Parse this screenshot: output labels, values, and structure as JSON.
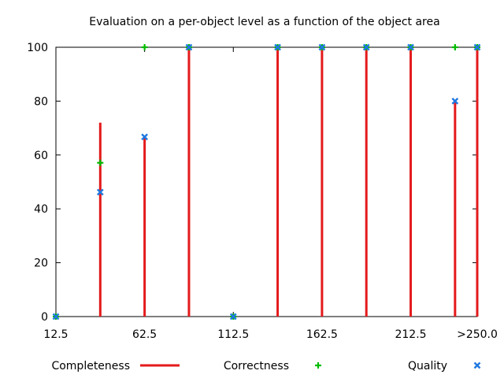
{
  "chart_data": {
    "type": "impulse",
    "title": "Evaluation on a per-object level as a function of the object area",
    "xlabel": "",
    "ylabel": "",
    "ylim": [
      0,
      100
    ],
    "xlim": [
      12.5,
      250
    ],
    "y_ticks": [
      "0",
      "20",
      "40",
      "60",
      "80",
      "100"
    ],
    "x_ticks": [
      {
        "x": 12.5,
        "label": "12.5"
      },
      {
        "x": 62.5,
        "label": "62.5"
      },
      {
        "x": 112.5,
        "label": "112.5"
      },
      {
        "x": 162.5,
        "label": "162.5"
      },
      {
        "x": 212.5,
        "label": "212.5"
      },
      {
        "x": 250,
        "label": ">250.0"
      }
    ],
    "legend_position": "bottom",
    "grid": false,
    "series": [
      {
        "name": "Completeness",
        "style": "impulse",
        "color": "#e41a1c",
        "points": [
          {
            "x": 12.5,
            "y": 0
          },
          {
            "x": 37.5,
            "y": 72
          },
          {
            "x": 62.5,
            "y": 67
          },
          {
            "x": 87.5,
            "y": 100
          },
          {
            "x": 112.5,
            "y": 0
          },
          {
            "x": 137.5,
            "y": 100
          },
          {
            "x": 162.5,
            "y": 100
          },
          {
            "x": 187.5,
            "y": 100
          },
          {
            "x": 212.5,
            "y": 100
          },
          {
            "x": 237.5,
            "y": 80
          },
          {
            "x": 250,
            "y": 100
          }
        ]
      },
      {
        "name": "Correctness",
        "style": "plus",
        "color": "#00bb00",
        "points": [
          {
            "x": 12.5,
            "y": 0
          },
          {
            "x": 37.5,
            "y": 57.1
          },
          {
            "x": 62.5,
            "y": 100
          },
          {
            "x": 87.5,
            "y": 100
          },
          {
            "x": 112.5,
            "y": 0
          },
          {
            "x": 137.5,
            "y": 100
          },
          {
            "x": 162.5,
            "y": 100
          },
          {
            "x": 187.5,
            "y": 100
          },
          {
            "x": 212.5,
            "y": 100
          },
          {
            "x": 237.5,
            "y": 100
          },
          {
            "x": 250,
            "y": 100
          }
        ]
      },
      {
        "name": "Quality",
        "style": "cross",
        "color": "#1f78e0",
        "points": [
          {
            "x": 12.5,
            "y": 0
          },
          {
            "x": 37.5,
            "y": 46.2
          },
          {
            "x": 62.5,
            "y": 66.7
          },
          {
            "x": 87.5,
            "y": 100
          },
          {
            "x": 112.5,
            "y": 0
          },
          {
            "x": 137.5,
            "y": 100
          },
          {
            "x": 162.5,
            "y": 100
          },
          {
            "x": 187.5,
            "y": 100
          },
          {
            "x": 212.5,
            "y": 100
          },
          {
            "x": 237.5,
            "y": 80
          },
          {
            "x": 250,
            "y": 100
          }
        ]
      }
    ]
  }
}
